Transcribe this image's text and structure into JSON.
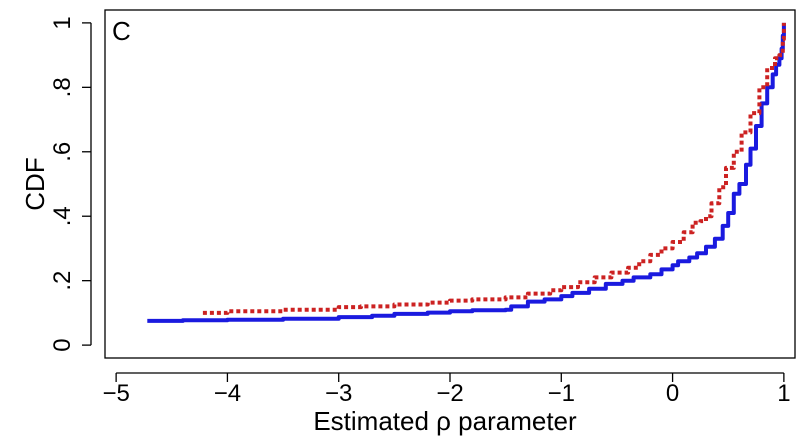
{
  "chart_data": {
    "type": "line",
    "panel_label": "C",
    "xlabel": "Estimated ρ parameter",
    "ylabel": "CDF",
    "xlim": [
      -5.1,
      1.1
    ],
    "ylim": [
      -0.04,
      1.04
    ],
    "x_ticks": [
      -5,
      -4,
      -3,
      -2,
      -1,
      0,
      1
    ],
    "x_tick_labels": [
      "−5",
      "−4",
      "−3",
      "−2",
      "−1",
      "0",
      "1"
    ],
    "y_ticks": [
      0,
      0.2,
      0.4,
      0.6,
      0.8,
      1
    ],
    "y_tick_labels": [
      "0",
      ".2",
      ".4",
      ".6",
      ".8",
      "1"
    ],
    "grid": false,
    "series": [
      {
        "color": "#1a1adf",
        "line_style": "solid",
        "x": [
          -4.72,
          -4.4,
          -4.0,
          -3.5,
          -3.0,
          -2.7,
          -2.5,
          -2.2,
          -2.0,
          -1.8,
          -1.5,
          -1.45,
          -1.3,
          -1.15,
          -1.0,
          -0.9,
          -0.75,
          -0.6,
          -0.45,
          -0.35,
          -0.2,
          -0.1,
          0.0,
          0.05,
          0.15,
          0.22,
          0.3,
          0.38,
          0.45,
          0.5,
          0.55,
          0.6,
          0.66,
          0.7,
          0.75,
          0.8,
          0.85,
          0.9,
          0.93,
          0.96,
          0.98,
          0.99,
          1.0
        ],
        "y": [
          0.075,
          0.077,
          0.079,
          0.082,
          0.087,
          0.091,
          0.097,
          0.101,
          0.105,
          0.108,
          0.11,
          0.12,
          0.135,
          0.142,
          0.152,
          0.162,
          0.175,
          0.19,
          0.2,
          0.21,
          0.22,
          0.235,
          0.248,
          0.26,
          0.272,
          0.285,
          0.305,
          0.33,
          0.37,
          0.41,
          0.47,
          0.5,
          0.56,
          0.61,
          0.68,
          0.75,
          0.8,
          0.84,
          0.87,
          0.89,
          0.92,
          0.96,
          1.0
        ]
      },
      {
        "color": "#cc2222",
        "line_style": "dotted",
        "x": [
          -4.22,
          -4.0,
          -3.5,
          -3.0,
          -2.8,
          -2.5,
          -2.2,
          -2.0,
          -1.8,
          -1.5,
          -1.3,
          -1.1,
          -1.0,
          -0.85,
          -0.7,
          -0.55,
          -0.4,
          -0.3,
          -0.2,
          -0.1,
          0.0,
          0.1,
          0.18,
          0.25,
          0.3,
          0.35,
          0.42,
          0.48,
          0.55,
          0.62,
          0.7,
          0.78,
          0.85,
          0.92,
          0.96,
          0.99,
          1.0
        ],
        "y": [
          0.1,
          0.105,
          0.11,
          0.118,
          0.12,
          0.126,
          0.132,
          0.138,
          0.142,
          0.148,
          0.16,
          0.17,
          0.18,
          0.195,
          0.21,
          0.225,
          0.24,
          0.26,
          0.28,
          0.3,
          0.32,
          0.35,
          0.38,
          0.385,
          0.4,
          0.44,
          0.49,
          0.55,
          0.6,
          0.66,
          0.72,
          0.8,
          0.86,
          0.89,
          0.9,
          0.95,
          1.0
        ]
      }
    ]
  }
}
